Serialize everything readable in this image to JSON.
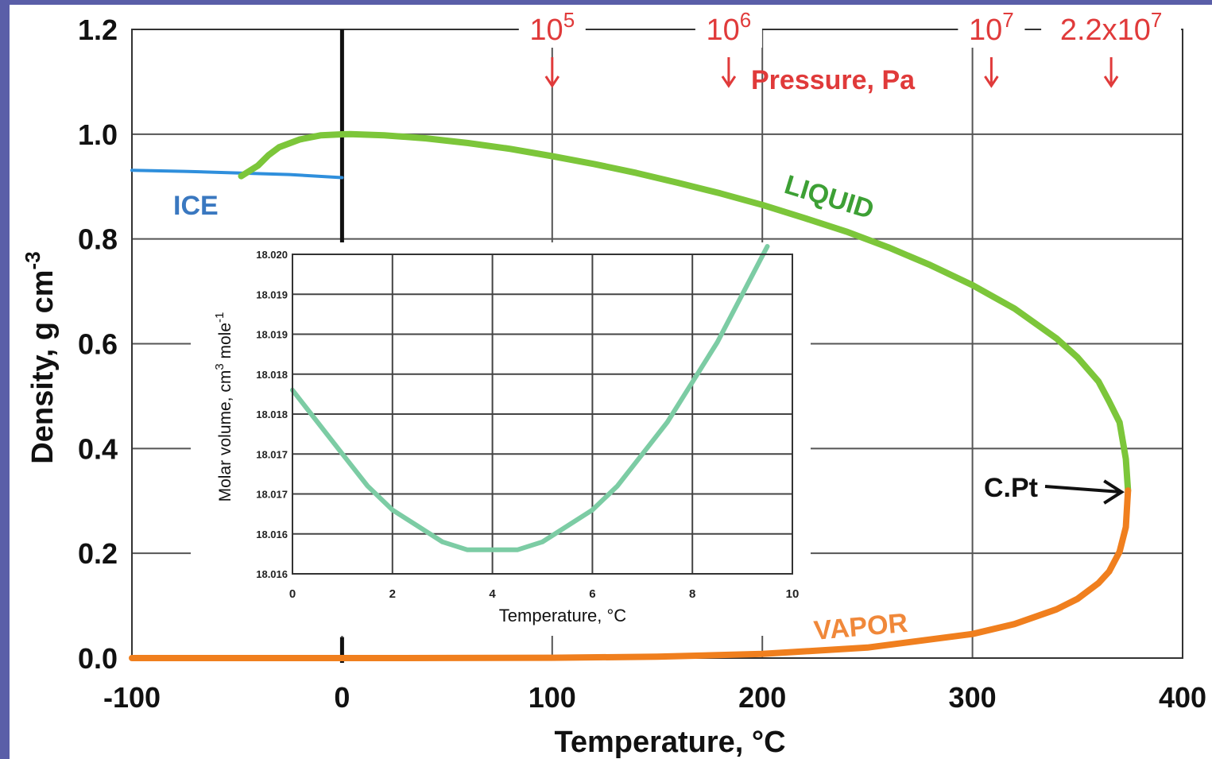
{
  "chart_data": [
    {
      "type": "line",
      "title": "",
      "xlabel": "Temperature, °C",
      "ylabel": "Density, g cm",
      "ylabel_exponent": "-3",
      "xlim": [
        -100,
        400
      ],
      "ylim": [
        0.0,
        1.2
      ],
      "x_ticks": [
        -100,
        0,
        100,
        200,
        300,
        400
      ],
      "x_tick_labels": [
        "-100",
        "0",
        "100",
        "200",
        "300",
        "400"
      ],
      "y_ticks": [
        0.0,
        0.2,
        0.4,
        0.6,
        0.8,
        1.0,
        1.2
      ],
      "y_tick_labels": [
        "0.0",
        "0.2",
        "0.4",
        "0.6",
        "0.8",
        "1.0",
        "1.2"
      ],
      "grid": true,
      "series": [
        {
          "name": "ICE",
          "color": "#2f8fdc",
          "label_color": "#3a78c0",
          "x": [
            -100,
            -75,
            -50,
            -25,
            0
          ],
          "y": [
            0.931,
            0.929,
            0.926,
            0.923,
            0.917
          ]
        },
        {
          "name": "LIQUID",
          "color": "#7cc63a",
          "label_color": "#3da035",
          "x": [
            -48,
            -40,
            -35,
            -30,
            -20,
            -10,
            0,
            4,
            20,
            40,
            60,
            80,
            100,
            120,
            140,
            160,
            180,
            200,
            220,
            240,
            260,
            280,
            300,
            320,
            340,
            350,
            360,
            365,
            370,
            373,
            374
          ],
          "y": [
            0.92,
            0.94,
            0.96,
            0.975,
            0.99,
            0.998,
            0.9998,
            1.0,
            0.998,
            0.992,
            0.983,
            0.972,
            0.958,
            0.943,
            0.926,
            0.907,
            0.887,
            0.865,
            0.84,
            0.814,
            0.784,
            0.75,
            0.712,
            0.667,
            0.61,
            0.574,
            0.528,
            0.49,
            0.45,
            0.38,
            0.32
          ]
        },
        {
          "name": "VAPOR",
          "color": "#f07f1e",
          "label_color": "#f0883a",
          "x": [
            -100,
            0,
            50,
            100,
            150,
            200,
            250,
            300,
            320,
            340,
            350,
            360,
            365,
            370,
            373,
            374
          ],
          "y": [
            0.0,
            0.0,
            0.0001,
            0.0006,
            0.0026,
            0.0079,
            0.02,
            0.046,
            0.065,
            0.093,
            0.113,
            0.143,
            0.165,
            0.203,
            0.25,
            0.32
          ]
        }
      ],
      "ice_point": {
        "x": 0,
        "y": [
          0.917,
          1.2
        ]
      },
      "critical_point": {
        "x": 374,
        "y": 0.32,
        "label": "C.Pt"
      },
      "pressure_axis": {
        "label": "Pressure, Pa",
        "color": "#e03a3a",
        "markers": [
          {
            "base": "10",
            "exp": "5",
            "x": 100
          },
          {
            "base": "10",
            "exp": "6",
            "x": 184
          },
          {
            "base": "10",
            "exp": "7",
            "x": 309
          },
          {
            "base": "2.2x10",
            "exp": "7",
            "x": 366
          }
        ]
      }
    },
    {
      "type": "line",
      "title": "",
      "xlabel": "Temperature, °C",
      "ylabel": "Molar volume, cm",
      "ylabel_sup1": "3",
      "ylabel_mid": " mole",
      "ylabel_sup2": "-1",
      "xlim": [
        0,
        10
      ],
      "ylim": [
        18.016,
        18.02
      ],
      "x_ticks": [
        0,
        2,
        4,
        6,
        8,
        10
      ],
      "x_tick_labels": [
        "0",
        "2",
        "4",
        "6",
        "8",
        "10"
      ],
      "y_ticks": [
        18.016,
        18.0165,
        18.017,
        18.0175,
        18.018,
        18.0185,
        18.019,
        18.0195,
        18.02
      ],
      "y_tick_labels": [
        "18.016",
        "18.016",
        "18.017",
        "18.017",
        "18.018",
        "18.018",
        "18.019",
        "18.019",
        "18.020"
      ],
      "grid": true,
      "series": [
        {
          "color": "#7ccca4",
          "x": [
            0,
            0.5,
            1,
            1.5,
            2,
            2.5,
            3,
            3.5,
            4,
            4.5,
            5,
            5.5,
            6,
            6.5,
            7,
            7.5,
            8,
            8.5,
            9,
            9.5
          ],
          "y": [
            18.0183,
            18.0179,
            18.0175,
            18.0171,
            18.0168,
            18.0166,
            18.0164,
            18.0163,
            18.0163,
            18.0163,
            18.0164,
            18.0166,
            18.0168,
            18.0171,
            18.0175,
            18.0179,
            18.0184,
            18.0189,
            18.0195,
            18.0201
          ]
        }
      ]
    }
  ]
}
